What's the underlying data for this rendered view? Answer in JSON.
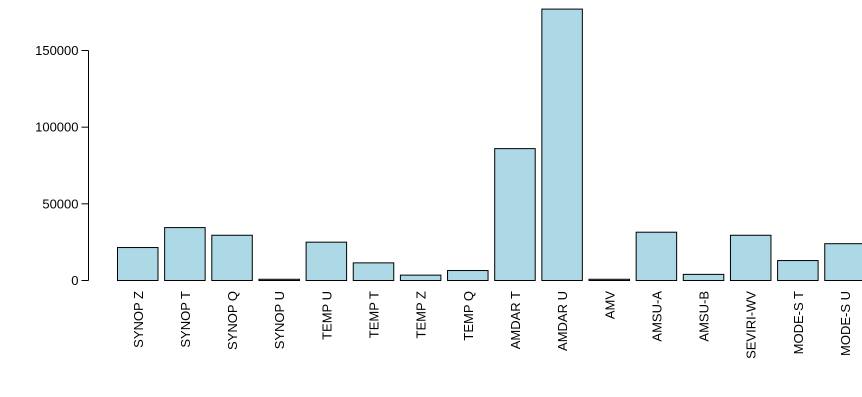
{
  "chart_data": {
    "type": "bar",
    "title": "",
    "xlabel": "",
    "ylabel": "",
    "categories": [
      "SYNOP Z",
      "SYNOP T",
      "SYNOP Q",
      "SYNOP U",
      "TEMP U",
      "TEMP T",
      "TEMP Z",
      "TEMP Q",
      "AMDAR T",
      "AMDAR U",
      "AMV",
      "AMSU-A",
      "AMSU-B",
      "SEVIRI-WV",
      "MODE-S T",
      "MODE-S U"
    ],
    "values": [
      21500,
      34500,
      29500,
      800,
      25000,
      11500,
      3500,
      6500,
      86000,
      177000,
      800,
      31500,
      4000,
      29500,
      13000,
      24000
    ],
    "yticks": [
      0,
      50000,
      100000,
      150000
    ],
    "ylim": [
      0,
      177000
    ],
    "bar_color": "#add8e6",
    "grid": false,
    "legend": "none"
  }
}
